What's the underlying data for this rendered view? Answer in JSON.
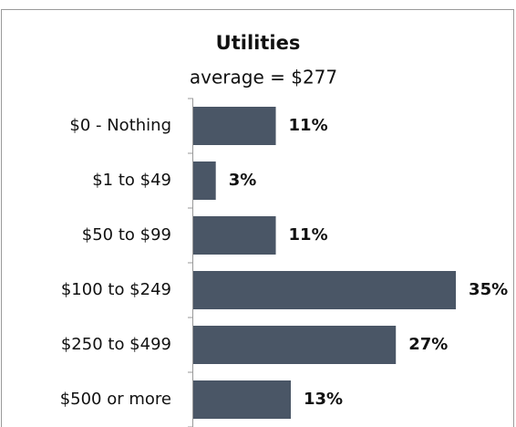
{
  "chart_data": {
    "type": "bar",
    "orientation": "horizontal",
    "title": "Utilities",
    "subtitle": "average = $277",
    "categories": [
      "$0 - Nothing",
      "$1 to $49",
      "$50 to $99",
      "$100 to $249",
      "$250 to $499",
      "$500 or more"
    ],
    "values": [
      11,
      3,
      11,
      35,
      27,
      13
    ],
    "value_labels": [
      "11%",
      "3%",
      "11%",
      "35%",
      "27%",
      "13%"
    ],
    "color": "#4a5666"
  }
}
